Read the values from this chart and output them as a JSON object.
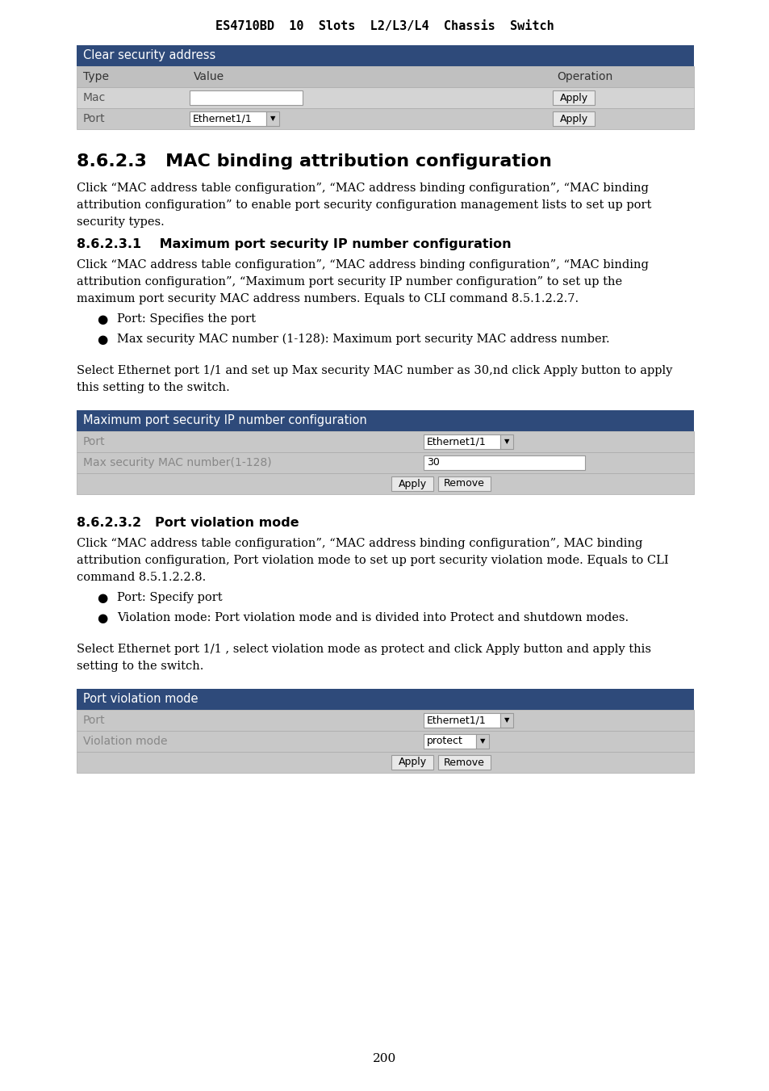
{
  "page_title": "ES4710BD  10  Slots  L2/L3/L4  Chassis  Switch",
  "page_number": "200",
  "bg": "#ffffff",
  "header_color": "#2e4a7a",
  "section_title": "8.6.2.3   MAC binding attribution configuration",
  "subsection1_title": "8.6.2.3.1    Maximum port security IP number configuration",
  "subsection2_title": "8.6.2.3.2   Port violation mode",
  "para1_lines": [
    "Click “MAC address table configuration”, “MAC address binding configuration”, “MAC binding",
    "attribution configuration” to enable port security configuration management lists to set up port",
    "security types."
  ],
  "para2_lines": [
    "Click “MAC address table configuration”, “MAC address binding configuration”, “MAC binding",
    "attribution configuration”, “Maximum port security IP number configuration” to set up the",
    "maximum port security MAC address numbers. Equals to CLI command 8.5.1.2.2.7."
  ],
  "bullet1_1": "Port: Specifies the port",
  "bullet1_2": "Max security MAC number (1-128): Maximum port security MAC address number.",
  "para3_lines": [
    "Select Ethernet port 1/1 and set up Max security MAC number as 30,nd click Apply button to apply",
    "this setting to the switch."
  ],
  "table1_title": "Maximum port security IP number configuration",
  "table1_row1_label": "Port",
  "table1_row1_value": "Ethernet1/1",
  "table1_row2_label": "Max security MAC number(1-128)",
  "table1_row2_value": "30",
  "para4_lines": [
    "Click “MAC address table configuration”, “MAC address binding configuration”, MAC binding",
    "attribution configuration, Port violation mode to set up port security violation mode. Equals to CLI",
    "command 8.5.1.2.2.8."
  ],
  "bullet2_1": "Port: Specify port",
  "bullet2_2": "Violation mode: Port violation mode and is divided into Protect and shutdown modes.",
  "para5_lines": [
    "Select Ethernet port 1/1 , select violation mode as protect and click Apply button and apply this",
    "setting to the switch."
  ],
  "table2_title": "Port violation mode",
  "table2_row1_label": "Port",
  "table2_row1_value": "Ethernet1/1",
  "table2_row2_label": "Violation mode",
  "table2_row2_value": "protect",
  "top_table_title": "Clear security address",
  "top_col1": "Type",
  "top_col2": "Value",
  "top_col3": "Operation",
  "top_mac_label": "Mac",
  "top_port_label": "Port",
  "top_port_value": "Ethernet1/1",
  "apply_btn": "Apply",
  "remove_btn": "Remove"
}
